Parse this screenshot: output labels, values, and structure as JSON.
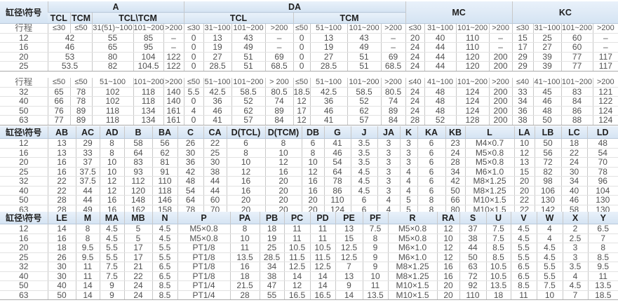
{
  "section1": {
    "bore_header": "缸径\\符号",
    "groups": [
      {
        "label": "A",
        "span": 5
      },
      {
        "label": "DA",
        "span": 8
      },
      {
        "label": "MC",
        "span": 4,
        "rows": 2
      },
      {
        "label": "KC",
        "span": 4,
        "rows": 2
      }
    ],
    "subgroups": [
      {
        "label": "TCL",
        "span": 1
      },
      {
        "label": "TCM",
        "span": 1
      },
      {
        "label": "TCL\\TCM",
        "span": 3
      },
      {
        "label": "TCL",
        "span": 4
      },
      {
        "label": "TCM",
        "span": 4
      }
    ],
    "stroke_label": "行程",
    "strokes": [
      "≤30",
      "≤50",
      "31(51)~100",
      "101~200",
      ">200",
      "≤30",
      "31~100",
      "101~200",
      ">200",
      "≤50",
      "51~100",
      "101~200",
      ">200",
      "≤30",
      "31~100",
      "101~200",
      ">200",
      "≤30",
      "31~100",
      "101~200",
      ">200"
    ],
    "rows": [
      {
        "bore": "12",
        "cells": [
          {
            "v": "42",
            "span": 2
          },
          "55",
          "85",
          "–",
          "0",
          "13",
          "43",
          "–",
          "0",
          "13",
          "43",
          "–",
          "20",
          "40",
          "110",
          "–",
          "15",
          "25",
          "60",
          "–"
        ]
      },
      {
        "bore": "16",
        "cells": [
          {
            "v": "46",
            "span": 2
          },
          "65",
          "95",
          "–",
          "0",
          "19",
          "49",
          "–",
          "0",
          "19",
          "49",
          "–",
          "24",
          "44",
          "110",
          "–",
          "17",
          "27",
          "60",
          "–"
        ]
      },
      {
        "bore": "20",
        "cells": [
          {
            "v": "53",
            "span": 2
          },
          "80",
          "104",
          "122",
          "0",
          "27",
          "51",
          "69",
          "0",
          "27",
          "51",
          "69",
          "24",
          "44",
          "120",
          "200",
          "29",
          "39",
          "77",
          "117"
        ]
      },
      {
        "bore": "25",
        "cells": [
          {
            "v": "53.5",
            "span": 2
          },
          "82",
          "104.5",
          "122",
          "0",
          "28.5",
          "51",
          "68.5",
          "0",
          "28.5",
          "51",
          "68.5",
          "24",
          "44",
          "120",
          "200",
          "29",
          "39",
          "77",
          "117"
        ]
      }
    ]
  },
  "section2": {
    "stroke_label": "行程",
    "strokes": [
      "≤50",
      "≤50",
      "51~100",
      "101~200",
      ">200",
      "≤50",
      "51~100",
      "101~200",
      "> 200",
      "≤50",
      "51~100",
      "101~200",
      ">200",
      "≤40",
      "41~100",
      "101~200",
      ">200",
      "≤40",
      "41~100",
      "101~200",
      ">200"
    ],
    "rows": [
      {
        "bore": "32",
        "cells": [
          "65",
          "78",
          "102",
          "118",
          "140",
          "5.5",
          "42.5",
          "58.5",
          "80.5",
          "18.5",
          "42.5",
          "58.5",
          "80.5",
          "24",
          "48",
          "124",
          "200",
          "33",
          "45",
          "83",
          "121"
        ]
      },
      {
        "bore": "40",
        "cells": [
          "66",
          "78",
          "102",
          "118",
          "140",
          "0",
          "36",
          "52",
          "74",
          "12",
          "36",
          "52",
          "74",
          "24",
          "48",
          "124",
          "200",
          "34",
          "46",
          "84",
          "122"
        ]
      },
      {
        "bore": "50",
        "cells": [
          "76",
          "89",
          "118",
          "134",
          "161",
          "4",
          "46",
          "62",
          "89",
          "17",
          "46",
          "62",
          "89",
          "24",
          "48",
          "124",
          "200",
          "36",
          "48",
          "86",
          "124"
        ]
      },
      {
        "bore": "63",
        "cells": [
          "77",
          "89",
          "118",
          "134",
          "161",
          "0",
          "41",
          "57",
          "84",
          "12",
          "41",
          "57",
          "84",
          "28",
          "52",
          "128",
          "200",
          "38",
          "50",
          "88",
          "124"
        ]
      }
    ]
  },
  "section3": {
    "headers": [
      "缸径\\符号",
      "AB",
      "AC",
      "AD",
      "B",
      "BA",
      "C",
      "CA",
      "D(TCL)",
      "D(TCM)",
      "DB",
      "G",
      "J",
      "JA",
      "K",
      "KA",
      "KB",
      "L",
      "LA",
      "LB",
      "LC",
      "LD"
    ],
    "rows": [
      {
        "bore": "12",
        "cells": [
          "13",
          "29",
          "8",
          "58",
          "56",
          "26",
          "22",
          "6",
          "8",
          "6",
          "41",
          "3.5",
          "3",
          "3",
          "6",
          "23",
          "M4×0.7",
          "10",
          "50",
          "18",
          "48"
        ]
      },
      {
        "bore": "16",
        "cells": [
          "13",
          "33",
          "8",
          "64",
          "62",
          "30",
          "25",
          "8",
          "10",
          "8",
          "46",
          "3.5",
          "3",
          "3",
          "6",
          "24",
          "M5×0.8",
          "12",
          "56",
          "22",
          "54"
        ]
      },
      {
        "bore": "20",
        "cells": [
          "16",
          "37",
          "10",
          "83",
          "81",
          "36",
          "30",
          "10",
          "12",
          "10",
          "54",
          "3.5",
          "3",
          "3",
          "6",
          "28",
          "M5×0.8",
          "13",
          "72",
          "24",
          "70"
        ]
      },
      {
        "bore": "25",
        "cells": [
          "16",
          "37.5",
          "10",
          "93",
          "91",
          "42",
          "38",
          "12",
          "16",
          "12",
          "64",
          "4.5",
          "3",
          "4",
          "6",
          "34",
          "M6×1.0",
          "15",
          "82",
          "30",
          "78"
        ]
      },
      {
        "bore": "32",
        "cells": [
          "22",
          "37.5",
          "12",
          "112",
          "110",
          "48",
          "44",
          "16",
          "20",
          "16",
          "78",
          "4.5",
          "3",
          "4",
          "6",
          "42",
          "M8×1.25",
          "20",
          "98",
          "34",
          "96"
        ]
      },
      {
        "bore": "40",
        "cells": [
          "22",
          "44",
          "12",
          "120",
          "118",
          "54",
          "44",
          "16",
          "20",
          "16",
          "86",
          "4.5",
          "3",
          "4",
          "6",
          "50",
          "M8×1.25",
          "20",
          "106",
          "40",
          "104"
        ]
      },
      {
        "bore": "50",
        "cells": [
          "28",
          "44",
          "16",
          "148",
          "146",
          "64",
          "60",
          "20",
          "20",
          "20",
          "110",
          "6",
          "4",
          "5",
          "8",
          "66",
          "M10×1.5",
          "22",
          "130",
          "46",
          "130"
        ]
      },
      {
        "bore": "63",
        "cells": [
          "28",
          "49",
          "16",
          "162",
          "158",
          "78",
          "70",
          "20",
          "20",
          "20",
          "124",
          "6",
          "4",
          "5",
          "8",
          "80",
          "M10×1.5",
          "22",
          "142",
          "58",
          "130"
        ]
      }
    ]
  },
  "section4": {
    "headers": [
      "缸径\\符号",
      "LE",
      "M",
      "MA",
      "MB",
      "N",
      "P",
      "PA",
      "PB",
      "PC",
      "PD",
      "PE",
      "PF",
      "R",
      "RA",
      "S",
      "U",
      "V",
      "W",
      "X",
      "Y"
    ],
    "rows": [
      {
        "bore": "12",
        "cells": [
          "14",
          "8",
          "4.5",
          "5",
          "4.5",
          "M5×0.8",
          "8",
          "18",
          "11",
          "11",
          "13",
          "7.5",
          "M5×0.8",
          "12",
          "37",
          "7.5",
          "4.5",
          "4",
          "2",
          "6.5"
        ]
      },
      {
        "bore": "16",
        "cells": [
          "16",
          "8",
          "4.5",
          "5",
          "4.5",
          "M5×0.8",
          "10",
          "19",
          "11",
          "11",
          "15",
          "8",
          "M5×0.8",
          "10",
          "38",
          "7.5",
          "4.5",
          "4",
          "2.5",
          "7"
        ]
      },
      {
        "bore": "20",
        "cells": [
          "18",
          "9.5",
          "5.5",
          "17",
          "5.5",
          "PT1/8",
          "11",
          "25",
          "10.5",
          "10.5",
          "12.5",
          "9",
          "M6×1.0",
          "12",
          "44",
          "8.5",
          "5.5",
          "4.5",
          "3",
          "8"
        ]
      },
      {
        "bore": "25",
        "cells": [
          "26",
          "9.5",
          "5.5",
          "17",
          "5.5",
          "PT1/8",
          "13.5",
          "28.5",
          "11.5",
          "11.5",
          "12.5",
          "9",
          "M6×1.0",
          "12",
          "50",
          "8.5",
          "5.5",
          "4.5",
          "3",
          "8.5"
        ]
      },
      {
        "bore": "32",
        "cells": [
          "30",
          "11",
          "7.5",
          "21",
          "6.5",
          "PT1/8",
          "16",
          "34",
          "12.5",
          "12.5",
          "7",
          "9",
          "M8×1.25",
          "16",
          "63",
          "10.5",
          "6.5",
          "5.5",
          "3.5",
          "9.5"
        ]
      },
      {
        "bore": "40",
        "cells": [
          "30",
          "11",
          "7.5",
          "22",
          "6.5",
          "PT1/8",
          "18",
          "38",
          "14",
          "14",
          "13",
          "10",
          "M8×1.25",
          "16",
          "72",
          "10.5",
          "6.5",
          "5.5",
          "4",
          "11"
        ]
      },
      {
        "bore": "50",
        "cells": [
          "40",
          "14",
          "9",
          "24",
          "8.5",
          "PT1/4",
          "21.5",
          "47",
          "12",
          "14",
          "9",
          "11",
          "M10×1.5",
          "20",
          "92",
          "13.5",
          "8.5",
          "7.5",
          "4.5",
          "13.5"
        ]
      },
      {
        "bore": "63",
        "cells": [
          "50",
          "14",
          "9",
          "24",
          "8.5",
          "PT1/4",
          "28",
          "55",
          "16.5",
          "16.5",
          "14",
          "13.5",
          "M10×1.5",
          "20",
          "110",
          "18",
          "11",
          "10",
          "7",
          "18.5"
        ]
      }
    ]
  }
}
